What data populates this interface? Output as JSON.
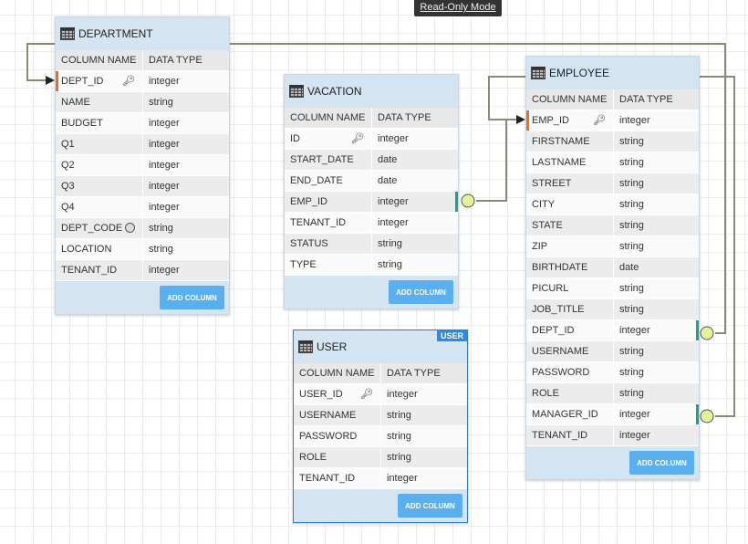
{
  "mode_label": "Read-Only Mode",
  "column_header": "COLUMN NAME",
  "type_header": "DATA TYPE",
  "add_column_label": "ADD COLUMN",
  "colors": {
    "primary_key": "#f26a21",
    "foreign_key": "#1aa38a",
    "button": "#5aafef",
    "header": "#d4e4f1"
  },
  "tables": [
    {
      "id": "department",
      "name": "DEPARTMENT",
      "columns": [
        {
          "name": "DEPT_ID",
          "type": "integer",
          "pk": true,
          "icon": "key-icon"
        },
        {
          "name": "NAME",
          "type": "string"
        },
        {
          "name": "BUDGET",
          "type": "integer"
        },
        {
          "name": "Q1",
          "type": "integer"
        },
        {
          "name": "Q2",
          "type": "integer"
        },
        {
          "name": "Q3",
          "type": "integer"
        },
        {
          "name": "Q4",
          "type": "integer"
        },
        {
          "name": "DEPT_CODE",
          "type": "string",
          "icon": "index-icon"
        },
        {
          "name": "LOCATION",
          "type": "string"
        },
        {
          "name": "TENANT_ID",
          "type": "integer"
        }
      ]
    },
    {
      "id": "vacation",
      "name": "VACATION",
      "columns": [
        {
          "name": "ID",
          "type": "integer",
          "icon": "key-icon"
        },
        {
          "name": "START_DATE",
          "type": "date"
        },
        {
          "name": "END_DATE",
          "type": "date"
        },
        {
          "name": "EMP_ID",
          "type": "integer",
          "fk": true
        },
        {
          "name": "TENANT_ID",
          "type": "integer"
        },
        {
          "name": "STATUS",
          "type": "string"
        },
        {
          "name": "TYPE",
          "type": "string"
        }
      ]
    },
    {
      "id": "user",
      "name": "USER",
      "badge": "USER",
      "selected": true,
      "columns": [
        {
          "name": "USER_ID",
          "type": "integer",
          "icon": "key-icon"
        },
        {
          "name": "USERNAME",
          "type": "string"
        },
        {
          "name": "PASSWORD",
          "type": "string"
        },
        {
          "name": "ROLE",
          "type": "string"
        },
        {
          "name": "TENANT_ID",
          "type": "integer"
        }
      ]
    },
    {
      "id": "employee",
      "name": "EMPLOYEE",
      "columns": [
        {
          "name": "EMP_ID",
          "type": "integer",
          "pk": true,
          "icon": "key-icon"
        },
        {
          "name": "FIRSTNAME",
          "type": "string"
        },
        {
          "name": "LASTNAME",
          "type": "string"
        },
        {
          "name": "STREET",
          "type": "string"
        },
        {
          "name": "CITY",
          "type": "string"
        },
        {
          "name": "STATE",
          "type": "string"
        },
        {
          "name": "ZIP",
          "type": "string"
        },
        {
          "name": "BIRTHDATE",
          "type": "date"
        },
        {
          "name": "PICURL",
          "type": "string"
        },
        {
          "name": "JOB_TITLE",
          "type": "string"
        },
        {
          "name": "DEPT_ID",
          "type": "integer",
          "fk": true
        },
        {
          "name": "USERNAME",
          "type": "string"
        },
        {
          "name": "PASSWORD",
          "type": "string"
        },
        {
          "name": "ROLE",
          "type": "string"
        },
        {
          "name": "MANAGER_ID",
          "type": "integer",
          "fk": true
        },
        {
          "name": "TENANT_ID",
          "type": "integer"
        }
      ]
    }
  ]
}
